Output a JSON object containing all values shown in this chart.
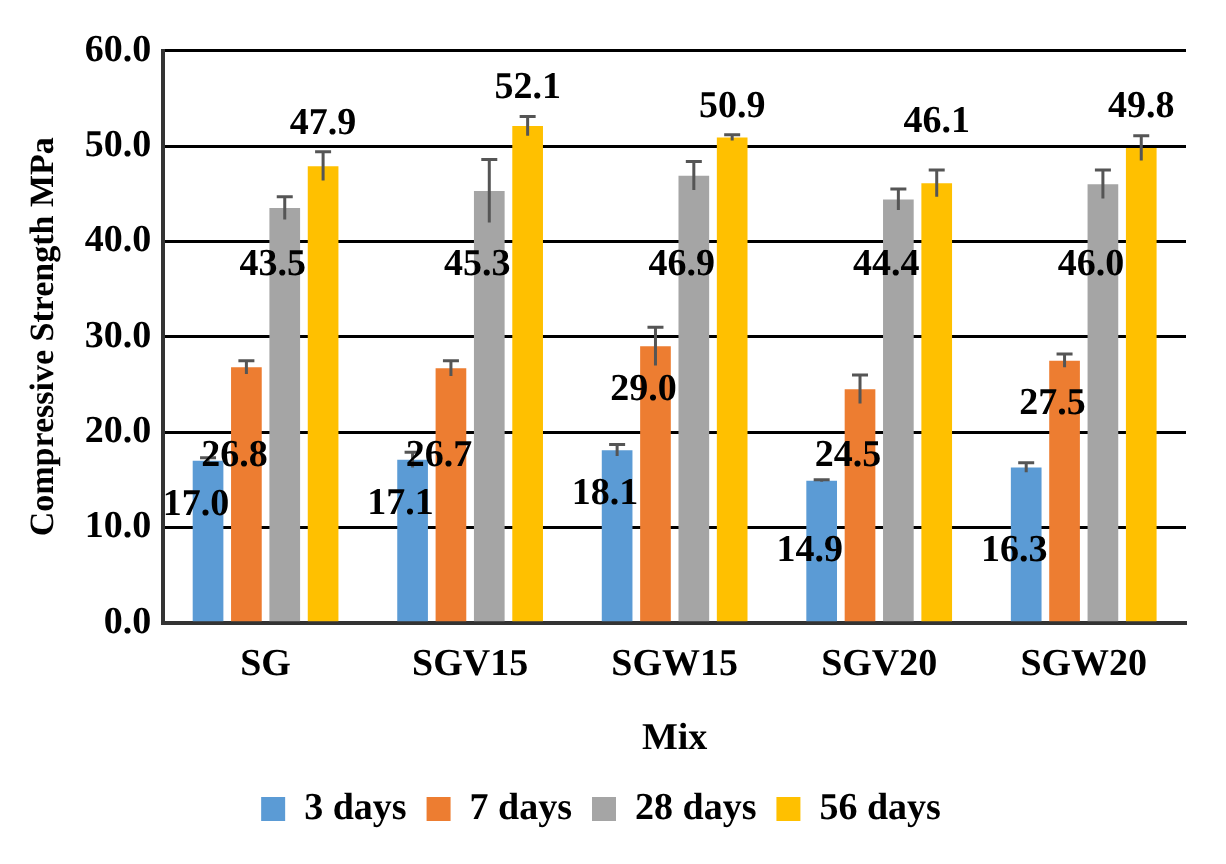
{
  "chart_data": {
    "type": "bar",
    "xlabel": "Mix",
    "ylabel": "Compressive Strength MPa",
    "categories": [
      "SG",
      "SGV15",
      "SGW15",
      "SGV20",
      "SGW20"
    ],
    "series": [
      {
        "name": "3 days",
        "color": "#5b9bd5",
        "values": [
          17.0,
          17.1,
          18.1,
          14.9,
          16.3
        ],
        "errors": [
          0.3,
          0.8,
          0.6,
          0.1,
          0.5
        ],
        "value_labels": [
          "17.0",
          "17.1",
          "18.1",
          "14.9",
          "16.3"
        ]
      },
      {
        "name": "7 days",
        "color": "#ed7d31",
        "values": [
          26.8,
          26.7,
          29.0,
          24.5,
          27.5
        ],
        "errors": [
          0.7,
          0.8,
          2.0,
          1.5,
          0.7
        ],
        "value_labels": [
          "26.8",
          "26.7",
          "29.0",
          "24.5",
          "27.5"
        ]
      },
      {
        "name": "28 days",
        "color": "#a5a5a5",
        "values": [
          43.5,
          45.3,
          46.9,
          44.4,
          46.0
        ],
        "errors": [
          1.2,
          3.3,
          1.5,
          1.1,
          1.5
        ],
        "value_labels": [
          "43.5",
          "45.3",
          "46.9",
          "44.4",
          "46.0"
        ]
      },
      {
        "name": "56 days",
        "color": "#ffc000",
        "values": [
          47.9,
          52.1,
          50.9,
          46.1,
          49.8
        ],
        "errors": [
          1.5,
          1.0,
          0.3,
          1.4,
          1.3
        ],
        "value_labels": [
          "47.9",
          "52.1",
          "50.9",
          "46.1",
          "49.8"
        ]
      }
    ],
    "ylim": [
      0,
      60
    ],
    "yticks": [
      {
        "value": 0,
        "label": "0.0"
      },
      {
        "value": 10,
        "label": "10.0"
      },
      {
        "value": 20,
        "label": "20.0"
      },
      {
        "value": 30,
        "label": "30.0"
      },
      {
        "value": 40,
        "label": "40.0"
      },
      {
        "value": 50,
        "label": "50.0"
      },
      {
        "value": 60,
        "label": "60.0"
      }
    ],
    "grid": "y",
    "legend": "bottom"
  }
}
